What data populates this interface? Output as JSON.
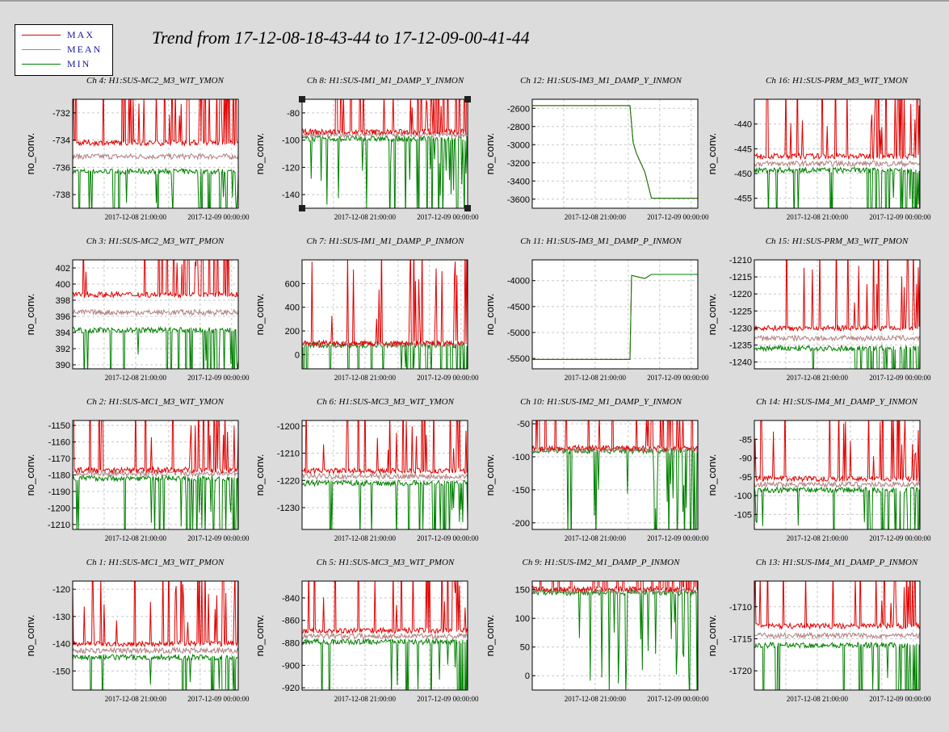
{
  "title": "Trend from 17-12-08-18-43-44 to 17-12-09-00-41-44",
  "legend": [
    {
      "label": "MAX",
      "color": "#e00000"
    },
    {
      "label": "MEAN",
      "color": "#b08080"
    },
    {
      "label": "MIN",
      "color": "#008000"
    }
  ],
  "colors": {
    "background": "#dcdcdc",
    "plot_bg": "#ffffff",
    "grid": "#c8c8c8"
  },
  "chart_data": [
    {
      "type": "line",
      "title": "Ch 4: H1:SUS-MC2_M3_WIT_YMON",
      "ylabel": "no_conv.",
      "yticks": [
        -732,
        -734,
        -736,
        -738
      ],
      "ylim": [
        -739,
        -731
      ],
      "x_ticks": [
        "2017-12-08 21:00:00",
        "2017-12-09 00:00:00"
      ],
      "levels": {
        "max": -734.2,
        "mean": -735.2,
        "min": -736.3
      }
    },
    {
      "type": "line",
      "title": "Ch 8: H1:SUS-IM1_M1_DAMP_Y_INMON",
      "ylabel": "no_conv.",
      "yticks": [
        -80,
        -100,
        -120,
        -140
      ],
      "ylim": [
        -150,
        -70
      ],
      "x_ticks": [
        "2017-12-08 21:00:00",
        "2017-12-09 00:00:00"
      ],
      "levels": {
        "max": -94,
        "mean": -96,
        "min": -99
      }
    },
    {
      "type": "line",
      "title": "Ch 12: H1:SUS-IM3_M1_DAMP_Y_INMON",
      "ylabel": "no_conv.",
      "yticks": [
        -2600,
        -2800,
        -3000,
        -3200,
        -3400,
        -3600
      ],
      "ylim": [
        -3700,
        -2500
      ],
      "x_ticks": [
        "2017-12-08 21:00:00",
        "2017-12-09 00:00:00"
      ],
      "steps": [
        [
          0,
          -2570
        ],
        [
          0.59,
          -2570
        ],
        [
          0.61,
          -2980
        ],
        [
          0.63,
          -3100
        ],
        [
          0.68,
          -3300
        ],
        [
          0.72,
          -3590
        ],
        [
          1,
          -3590
        ]
      ]
    },
    {
      "type": "line",
      "title": "Ch 16: H1:SUS-PRM_M3_WIT_YMON",
      "ylabel": "no_conv.",
      "yticks": [
        -440,
        -445,
        -450,
        -455
      ],
      "ylim": [
        -457,
        -435
      ],
      "x_ticks": [
        "2017-12-08 21:00:00",
        "2017-12-09 00:00:00"
      ],
      "levels": {
        "max": -446.5,
        "mean": -448,
        "min": -449.3
      }
    },
    {
      "type": "line",
      "title": "Ch 3: H1:SUS-MC2_M3_WIT_PMON",
      "ylabel": "no_conv.",
      "yticks": [
        402,
        400,
        398,
        396,
        394,
        392,
        390
      ],
      "ylim": [
        389.5,
        403
      ],
      "x_ticks": [
        "2017-12-08 21:00:00",
        "2017-12-09 00:00:00"
      ],
      "levels": {
        "max": 398.7,
        "mean": 396.5,
        "min": 394.3
      }
    },
    {
      "type": "line",
      "title": "Ch 7: H1:SUS-IM1_M1_DAMP_P_INMON",
      "ylabel": "no_conv.",
      "yticks": [
        600,
        400,
        200,
        0
      ],
      "ylim": [
        -120,
        800
      ],
      "x_ticks": [
        "2017-12-08 21:00:00",
        "2017-12-09 00:00:00"
      ],
      "levels": {
        "max": 95,
        "mean": 88,
        "min": 80
      }
    },
    {
      "type": "line",
      "title": "Ch 11: H1:SUS-IM3_M1_DAMP_P_INMON",
      "ylabel": "no_conv.",
      "yticks": [
        -4000,
        -4500,
        -5000,
        -5500
      ],
      "ylim": [
        -5700,
        -3600
      ],
      "x_ticks": [
        "2017-12-08 21:00:00",
        "2017-12-09 00:00:00"
      ],
      "steps": [
        [
          0,
          -5520
        ],
        [
          0.59,
          -5520
        ],
        [
          0.6,
          -3900
        ],
        [
          0.68,
          -3960
        ],
        [
          0.72,
          -3880
        ],
        [
          1,
          -3880
        ]
      ]
    },
    {
      "type": "line",
      "title": "Ch 15: H1:SUS-PRM_M3_WIT_PMON",
      "ylabel": "no_conv.",
      "yticks": [
        -1210,
        -1215,
        -1220,
        -1225,
        -1230,
        -1235,
        -1240
      ],
      "ylim": [
        -1242,
        -1210
      ],
      "x_ticks": [
        "2017-12-08 21:00:00",
        "2017-12-09 00:00:00"
      ],
      "levels": {
        "max": -1230,
        "mean": -1233,
        "min": -1236
      }
    },
    {
      "type": "line",
      "title": "Ch 2: H1:SUS-MC1_M3_WIT_YMON",
      "ylabel": "no_conv.",
      "yticks": [
        -1150,
        -1160,
        -1170,
        -1180,
        -1190,
        -1200,
        -1210
      ],
      "ylim": [
        -1213,
        -1147
      ],
      "x_ticks": [
        "2017-12-08 21:00:00",
        "2017-12-09 00:00:00"
      ],
      "levels": {
        "max": -1177,
        "mean": -1179,
        "min": -1182
      }
    },
    {
      "type": "line",
      "title": "Ch 6: H1:SUS-MC3_M3_WIT_YMON",
      "ylabel": "no_conv.",
      "yticks": [
        -1200,
        -1210,
        -1220,
        -1230
      ],
      "ylim": [
        -1238,
        -1198
      ],
      "x_ticks": [
        "2017-12-08 21:00:00",
        "2017-12-09 00:00:00"
      ],
      "levels": {
        "max": -1216.5,
        "mean": -1218.5,
        "min": -1221
      }
    },
    {
      "type": "line",
      "title": "Ch 10: H1:SUS-IM2_M1_DAMP_Y_INMON",
      "ylabel": "no_conv.",
      "yticks": [
        -50,
        -100,
        -150,
        -200
      ],
      "ylim": [
        -210,
        -45
      ],
      "x_ticks": [
        "2017-12-08 21:00:00",
        "2017-12-09 00:00:00"
      ],
      "levels": {
        "max": -87,
        "mean": -89,
        "min": -91
      }
    },
    {
      "type": "line",
      "title": "Ch 14: H1:SUS-IM4_M1_DAMP_Y_INMON",
      "ylabel": "no_conv.",
      "yticks": [
        -85,
        -90,
        -95,
        -100,
        -105
      ],
      "ylim": [
        -109,
        -80
      ],
      "x_ticks": [
        "2017-12-08 21:00:00",
        "2017-12-09 00:00:00"
      ],
      "levels": {
        "max": -95.5,
        "mean": -97,
        "min": -98.5
      }
    },
    {
      "type": "line",
      "title": "Ch 1: H1:SUS-MC1_M3_WIT_PMON",
      "ylabel": "no_conv.",
      "yticks": [
        -120,
        -130,
        -140,
        -150
      ],
      "ylim": [
        -157,
        -117
      ],
      "x_ticks": [
        "2017-12-08 21:00:00",
        "2017-12-09 00:00:00"
      ],
      "levels": {
        "max": -140,
        "mean": -142.5,
        "min": -145
      }
    },
    {
      "type": "line",
      "title": "Ch 5: H1:SUS-MC3_M3_WIT_PMON",
      "ylabel": "no_conv.",
      "yticks": [
        -840,
        -860,
        -880,
        -900,
        -920
      ],
      "ylim": [
        -922,
        -825
      ],
      "x_ticks": [
        "2017-12-08 21:00:00",
        "2017-12-09 00:00:00"
      ],
      "levels": {
        "max": -869,
        "mean": -874,
        "min": -879
      }
    },
    {
      "type": "line",
      "title": "Ch 9: H1:SUS-IM2_M1_DAMP_P_INMON",
      "ylabel": "no_conv.",
      "yticks": [
        150,
        100,
        50,
        0
      ],
      "ylim": [
        -25,
        165
      ],
      "x_ticks": [
        "2017-12-08 21:00:00",
        "2017-12-09 00:00:00"
      ],
      "levels": {
        "max": 151,
        "mean": 148,
        "min": 145
      }
    },
    {
      "type": "line",
      "title": "Ch 13: H1:SUS-IM4_M1_DAMP_P_INMON",
      "ylabel": "no_conv.",
      "yticks": [
        -1710,
        -1715,
        -1720
      ],
      "ylim": [
        -1723,
        -1706
      ],
      "x_ticks": [
        "2017-12-08 21:00:00",
        "2017-12-09 00:00:00"
      ],
      "levels": {
        "max": -1713,
        "mean": -1714.5,
        "min": -1716
      }
    }
  ]
}
